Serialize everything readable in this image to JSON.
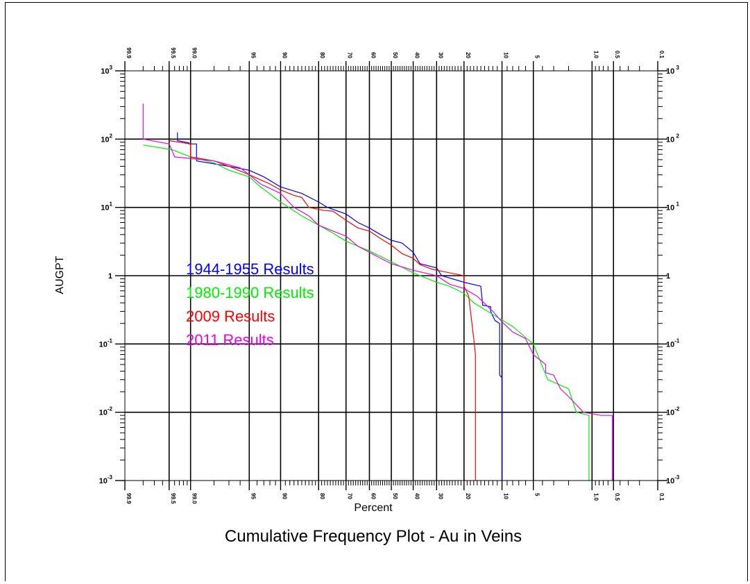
{
  "chart_data": {
    "type": "line",
    "title": "Cumulative Frequency Plot - Au in Veins",
    "xlabel": "Percent",
    "ylabel": "AUGPT",
    "x_scale": "probability",
    "y_scale": "log",
    "xlim": [
      99.9,
      0.1
    ],
    "ylim": [
      0.001,
      1000
    ],
    "grid": true,
    "legend_position": "inside left",
    "x_ticks": [
      {
        "value": 99.9,
        "label": "99.9"
      },
      {
        "value": 99.5,
        "label": "99.5"
      },
      {
        "value": 99.0,
        "label": "99.0"
      },
      {
        "value": 95,
        "label": "95"
      },
      {
        "value": 90,
        "label": "90"
      },
      {
        "value": 80,
        "label": "80"
      },
      {
        "value": 70,
        "label": "70"
      },
      {
        "value": 60,
        "label": "60"
      },
      {
        "value": 50,
        "label": "50"
      },
      {
        "value": 40,
        "label": "40"
      },
      {
        "value": 30,
        "label": "30"
      },
      {
        "value": 20,
        "label": "20"
      },
      {
        "value": 10,
        "label": "10"
      },
      {
        "value": 5,
        "label": "5"
      },
      {
        "value": 1.0,
        "label": "1.0"
      },
      {
        "value": 0.5,
        "label": "0.5"
      },
      {
        "value": 0.1,
        "label": "0.1"
      }
    ],
    "y_ticks": [
      {
        "value": 1000,
        "base": "10",
        "exp": "3",
        "right_exp": " 3"
      },
      {
        "value": 100,
        "base": "10",
        "exp": "2",
        "right_exp": " 2"
      },
      {
        "value": 10,
        "base": "10",
        "exp": "1",
        "right_exp": " 1"
      },
      {
        "value": 1,
        "base": "1",
        "exp": "",
        "right_exp": ""
      },
      {
        "value": 0.1,
        "base": "10",
        "exp": "-1",
        "right_exp": "-1"
      },
      {
        "value": 0.01,
        "base": "10",
        "exp": "-2",
        "right_exp": "-2"
      },
      {
        "value": 0.001,
        "base": "10",
        "exp": "-3",
        "right_exp": "-3"
      }
    ],
    "series": [
      {
        "name": "1944-1955 Results",
        "color": "#0000ff",
        "points": [
          [
            99.34,
            125
          ],
          [
            99.34,
            95
          ],
          [
            99.05,
            88
          ],
          [
            99.05,
            85
          ],
          [
            98.8,
            85
          ],
          [
            98.8,
            48
          ],
          [
            97.0,
            40
          ],
          [
            95.0,
            35
          ],
          [
            93.0,
            28
          ],
          [
            90.0,
            20
          ],
          [
            85.0,
            16
          ],
          [
            80.0,
            12
          ],
          [
            77.0,
            10
          ],
          [
            70.0,
            8
          ],
          [
            65.0,
            6
          ],
          [
            60.0,
            5
          ],
          [
            55.0,
            4
          ],
          [
            50.0,
            3.3
          ],
          [
            45.0,
            3.0
          ],
          [
            40.0,
            2.2
          ],
          [
            37.0,
            1.5
          ],
          [
            30.0,
            1.3
          ],
          [
            28.0,
            1.0
          ],
          [
            20.0,
            0.8
          ],
          [
            15.0,
            0.7
          ],
          [
            14.5,
            0.37
          ],
          [
            12.5,
            0.35
          ],
          [
            12.5,
            0.3
          ],
          [
            11.5,
            0.22
          ],
          [
            10.5,
            0.2
          ],
          [
            10.5,
            0.035
          ],
          [
            10.0,
            0.032
          ],
          [
            10.0,
            0.001
          ]
        ]
      },
      {
        "name": "1980-1990 Results",
        "color": "#00ee00",
        "points": [
          [
            99.8,
            82
          ],
          [
            99.45,
            70
          ],
          [
            99.0,
            55
          ],
          [
            98.0,
            45
          ],
          [
            97.0,
            35
          ],
          [
            95.0,
            28
          ],
          [
            93.5,
            20
          ],
          [
            90.0,
            12
          ],
          [
            85.0,
            7.5
          ],
          [
            80.0,
            5.5
          ],
          [
            75.0,
            4.2
          ],
          [
            70.0,
            3.2
          ],
          [
            60.0,
            2.3
          ],
          [
            50.0,
            1.6
          ],
          [
            40.0,
            1.1
          ],
          [
            30.0,
            0.8
          ],
          [
            25.0,
            0.7
          ],
          [
            20.0,
            0.55
          ],
          [
            17.0,
            0.4
          ],
          [
            12.0,
            0.27
          ],
          [
            8.0,
            0.18
          ],
          [
            5.0,
            0.1
          ],
          [
            3.5,
            0.03
          ],
          [
            2.0,
            0.022
          ],
          [
            1.6,
            0.01
          ],
          [
            1.1,
            0.009
          ],
          [
            1.1,
            0.001
          ]
        ]
      },
      {
        "name": "2009 Results",
        "color": "#ff0000",
        "points": [
          [
            99.5,
            95
          ],
          [
            99.0,
            85
          ],
          [
            99.0,
            55
          ],
          [
            98.0,
            48
          ],
          [
            97.0,
            40
          ],
          [
            95.0,
            30
          ],
          [
            92.0,
            22
          ],
          [
            90.0,
            18
          ],
          [
            87.0,
            15
          ],
          [
            85.0,
            14
          ],
          [
            83.0,
            10
          ],
          [
            78.0,
            9
          ],
          [
            75.0,
            8.8
          ],
          [
            70.0,
            6.5
          ],
          [
            65.0,
            5
          ],
          [
            60.0,
            4.5
          ],
          [
            55.0,
            3.5
          ],
          [
            50.0,
            2.8
          ],
          [
            45.0,
            2.1
          ],
          [
            40.0,
            1.8
          ],
          [
            37.0,
            1.45
          ],
          [
            32.0,
            1.25
          ],
          [
            25.0,
            1.1
          ],
          [
            20.0,
            1.0
          ],
          [
            20.0,
            0.7
          ],
          [
            18.5,
            0.5
          ],
          [
            17.0,
            0.12
          ],
          [
            16.5,
            0.07
          ],
          [
            16.5,
            0.001
          ]
        ]
      },
      {
        "name": "2011 Results",
        "color": "#ee00ee",
        "points": [
          [
            99.8,
            330
          ],
          [
            99.8,
            100
          ],
          [
            99.5,
            85
          ],
          [
            99.4,
            55
          ],
          [
            98.0,
            48
          ],
          [
            96.0,
            38
          ],
          [
            95.0,
            30
          ],
          [
            93.5,
            22
          ],
          [
            92.0,
            19
          ],
          [
            90.0,
            16
          ],
          [
            87.0,
            10
          ],
          [
            83.0,
            7.5
          ],
          [
            80.0,
            5.5
          ],
          [
            75.0,
            4.5
          ],
          [
            70.0,
            3.8
          ],
          [
            65.0,
            2.7
          ],
          [
            60.0,
            2.2
          ],
          [
            55.0,
            1.8
          ],
          [
            50.0,
            1.5
          ],
          [
            40.0,
            1.2
          ],
          [
            30.0,
            1.0
          ],
          [
            25.0,
            0.75
          ],
          [
            20.0,
            0.65
          ],
          [
            16.0,
            0.5
          ],
          [
            12.0,
            0.3
          ],
          [
            10.0,
            0.21
          ],
          [
            8.0,
            0.15
          ],
          [
            6.0,
            0.12
          ],
          [
            5.0,
            0.07
          ],
          [
            3.7,
            0.05
          ],
          [
            3.7,
            0.038
          ],
          [
            3.0,
            0.035
          ],
          [
            2.5,
            0.022
          ],
          [
            2.0,
            0.017
          ],
          [
            1.3,
            0.01
          ],
          [
            0.75,
            0.009
          ],
          [
            0.52,
            0.009
          ],
          [
            0.52,
            0.001
          ]
        ]
      }
    ]
  }
}
